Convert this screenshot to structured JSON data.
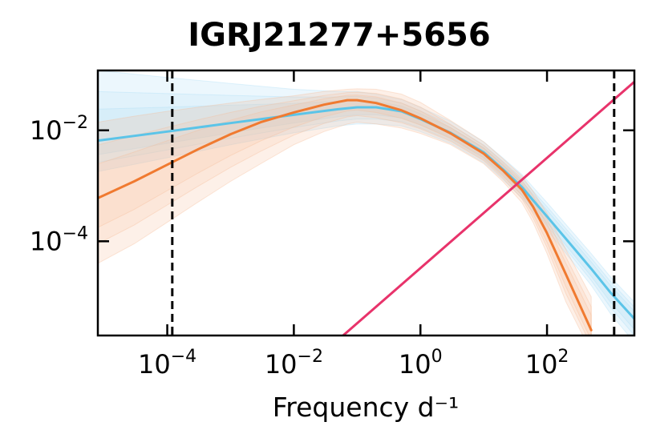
{
  "chart_data": {
    "type": "line",
    "title": "IGRJ21277+5656",
    "xlabel": "Frequency d⁻¹",
    "ylabel": "",
    "xscale": "log",
    "yscale": "log",
    "xlim": [
      8e-06,
      2400
    ],
    "ylim": [
      2e-06,
      0.12
    ],
    "x_ticks": [
      {
        "value": 0.0001,
        "label_base": "10",
        "label_exp": "−4"
      },
      {
        "value": 0.01,
        "label_base": "10",
        "label_exp": "−2"
      },
      {
        "value": 1,
        "label_base": "10",
        "label_exp": "0"
      },
      {
        "value": 100,
        "label_base": "10",
        "label_exp": "2"
      }
    ],
    "y_ticks": [
      {
        "value": 0.01,
        "label_base": "10",
        "label_exp": "−2"
      },
      {
        "value": 0.0001,
        "label_base": "10",
        "label_exp": "−4"
      }
    ],
    "vlines": [
      0.00012,
      1150
    ],
    "grid": false,
    "legend": "none",
    "series": [
      {
        "color": "#5bc4e8",
        "band_color": "#a9dcf5",
        "x": [
          8e-06,
          0.0001,
          0.001,
          0.01,
          0.05,
          0.1,
          0.2,
          0.5,
          1,
          3,
          10,
          20,
          40,
          60,
          100,
          200,
          500,
          1000,
          2400
        ],
        "y": [
          0.0065,
          0.0095,
          0.0135,
          0.019,
          0.024,
          0.026,
          0.026,
          0.022,
          0.016,
          0.009,
          0.004,
          0.002,
          0.00095,
          0.00055,
          0.00028,
          0.00011,
          3.2e-05,
          1.2e-05,
          4e-06
        ],
        "y_low": [
          0.0018,
          0.0032,
          0.0055,
          0.009,
          0.012,
          0.013,
          0.013,
          0.012,
          0.0095,
          0.0058,
          0.0026,
          0.0013,
          0.0006,
          0.00034,
          0.00016,
          6e-05,
          1.6e-05,
          5e-06,
          1.5e-06
        ],
        "y_high": [
          0.12,
          0.09,
          0.07,
          0.055,
          0.05,
          0.05,
          0.045,
          0.036,
          0.026,
          0.0145,
          0.0062,
          0.0032,
          0.0016,
          0.00095,
          0.0005,
          0.0002,
          6e-05,
          2.3e-05,
          8e-06
        ]
      },
      {
        "color": "#f07a30",
        "band_color": "#f7b996",
        "x": [
          8e-06,
          3e-05,
          0.0001,
          0.0003,
          0.001,
          0.003,
          0.01,
          0.03,
          0.07,
          0.1,
          0.2,
          0.5,
          1,
          3,
          10,
          20,
          40,
          60,
          100,
          200,
          500
        ],
        "y": [
          0.0006,
          0.0012,
          0.0024,
          0.0045,
          0.0085,
          0.014,
          0.021,
          0.029,
          0.035,
          0.035,
          0.031,
          0.023,
          0.0165,
          0.0088,
          0.0038,
          0.0019,
          0.00085,
          0.00042,
          0.00014,
          2.5e-05,
          2.5e-06
        ],
        "y_low": [
          4e-05,
          9e-05,
          0.00022,
          0.0005,
          0.0012,
          0.0025,
          0.0055,
          0.0095,
          0.013,
          0.014,
          0.013,
          0.011,
          0.0088,
          0.0055,
          0.0025,
          0.0012,
          0.0005,
          0.00022,
          6e-05,
          8e-06,
          1e-06
        ],
        "y_high": [
          0.014,
          0.018,
          0.022,
          0.026,
          0.031,
          0.036,
          0.042,
          0.05,
          0.055,
          0.056,
          0.055,
          0.045,
          0.032,
          0.015,
          0.0062,
          0.0031,
          0.0015,
          0.0008,
          0.00032,
          7e-05,
          1e-05
        ]
      },
      {
        "color": "#e8336b",
        "x": [
          0.06,
          2400
        ],
        "y": [
          2e-06,
          0.075
        ]
      }
    ]
  }
}
